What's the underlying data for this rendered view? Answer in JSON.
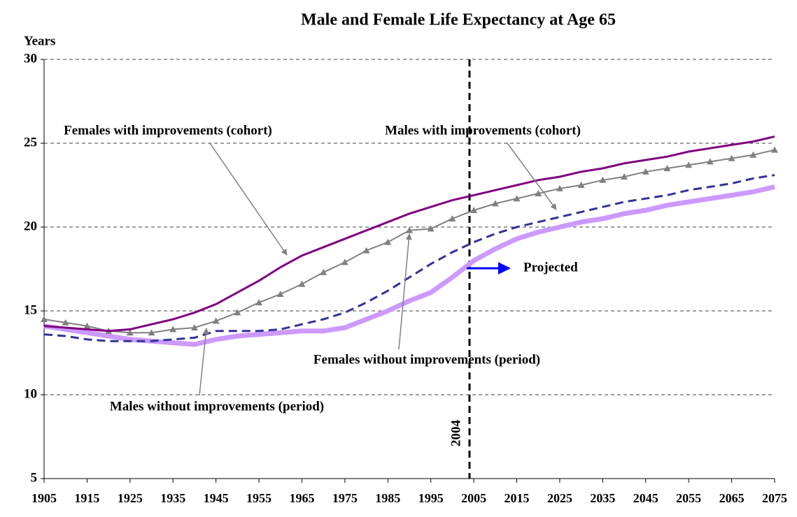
{
  "chart_data": {
    "type": "line",
    "title": "Male and Female Life Expectancy at Age 65",
    "y_label": "Years",
    "x": [
      1905,
      1910,
      1915,
      1920,
      1925,
      1930,
      1935,
      1940,
      1945,
      1950,
      1955,
      1960,
      1965,
      1970,
      1975,
      1980,
      1985,
      1990,
      1995,
      2000,
      2005,
      2010,
      2015,
      2020,
      2025,
      2030,
      2035,
      2040,
      2045,
      2050,
      2055,
      2060,
      2065,
      2070,
      2075
    ],
    "series": [
      {
        "name": "Females with improvements (cohort)",
        "color": "#800080",
        "width": 3,
        "dash": false,
        "marker": "none",
        "values": [
          14.1,
          14.0,
          13.9,
          13.8,
          13.9,
          14.2,
          14.5,
          14.9,
          15.4,
          16.1,
          16.8,
          17.6,
          18.3,
          18.8,
          19.3,
          19.8,
          20.3,
          20.8,
          21.2,
          21.6,
          21.9,
          22.2,
          22.5,
          22.8,
          23.0,
          23.3,
          23.5,
          23.8,
          24.0,
          24.2,
          24.5,
          24.7,
          24.9,
          25.1,
          25.4
        ]
      },
      {
        "name": "Males with improvements (cohort)",
        "color": "#808080",
        "width": 2,
        "dash": false,
        "marker": "triangle",
        "values": [
          14.5,
          14.3,
          14.1,
          13.8,
          13.7,
          13.7,
          13.9,
          14.0,
          14.4,
          14.9,
          15.5,
          16.0,
          16.6,
          17.3,
          17.9,
          18.6,
          19.1,
          19.8,
          19.9,
          20.5,
          21.0,
          21.4,
          21.7,
          22.0,
          22.3,
          22.5,
          22.8,
          23.0,
          23.3,
          23.5,
          23.7,
          23.9,
          24.1,
          24.3,
          24.6
        ]
      },
      {
        "name": "Females without improvements (period)",
        "color": "#333399",
        "width": 3,
        "dash": true,
        "marker": "none",
        "values": [
          13.6,
          13.5,
          13.3,
          13.2,
          13.2,
          13.2,
          13.3,
          13.4,
          13.8,
          13.8,
          13.8,
          13.9,
          14.2,
          14.5,
          14.9,
          15.5,
          16.2,
          17.0,
          17.8,
          18.5,
          19.1,
          19.6,
          20.0,
          20.3,
          20.6,
          20.9,
          21.2,
          21.5,
          21.7,
          21.9,
          22.2,
          22.4,
          22.6,
          22.9,
          23.1
        ]
      },
      {
        "name": "Males without improvements (period)",
        "color": "#CC99FF",
        "width": 7,
        "dash": false,
        "marker": "none",
        "values": [
          14.1,
          13.9,
          13.7,
          13.5,
          13.3,
          13.2,
          13.1,
          13.0,
          13.3,
          13.5,
          13.6,
          13.7,
          13.8,
          13.8,
          14.0,
          14.5,
          15.0,
          15.6,
          16.1,
          17.0,
          18.0,
          18.7,
          19.3,
          19.7,
          20.0,
          20.3,
          20.5,
          20.8,
          21.0,
          21.3,
          21.5,
          21.7,
          21.9,
          22.1,
          22.4
        ]
      }
    ],
    "xlim": [
      1905,
      2075
    ],
    "xticks": [
      1905,
      1915,
      1925,
      1935,
      1945,
      1955,
      1965,
      1975,
      1985,
      1995,
      2005,
      2015,
      2025,
      2035,
      2045,
      2055,
      2065,
      2075
    ],
    "ylim": [
      5,
      30
    ],
    "yticks": [
      5,
      10,
      15,
      20,
      25,
      30
    ],
    "grid": true,
    "vline": 2004,
    "projection_label": "Projected",
    "projection_color": "#0000FF"
  }
}
